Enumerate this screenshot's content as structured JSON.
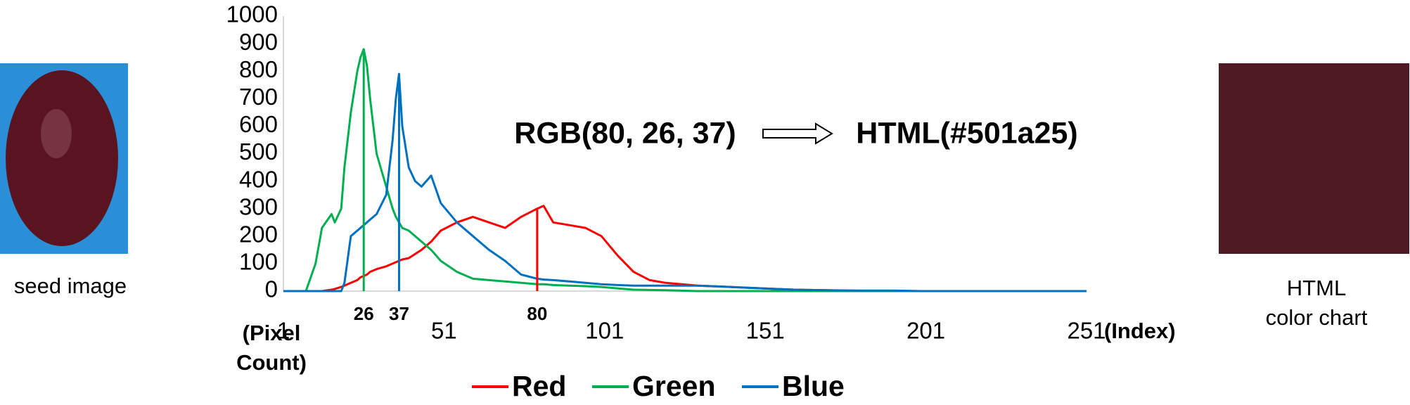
{
  "seed_image": {
    "caption": "seed image"
  },
  "color_chart": {
    "caption_lines": [
      "HTML",
      "color chart"
    ],
    "color": "#501a25"
  },
  "chart_data": {
    "type": "line",
    "y_label": "(Pixel Count)",
    "x_label": "(Index)",
    "annotations": [
      "RGB(80, 26, 37)",
      "HTML(#501a25)"
    ],
    "x": [
      1,
      8,
      11,
      13,
      16,
      17,
      19,
      20,
      22,
      24,
      25,
      26,
      27,
      28,
      30,
      33,
      35,
      36,
      37,
      38,
      40,
      42,
      44,
      47,
      50,
      55,
      60,
      65,
      70,
      75,
      80,
      82,
      85,
      90,
      95,
      100,
      105,
      110,
      115,
      120,
      130,
      140,
      150,
      160,
      170,
      180,
      190,
      200,
      251
    ],
    "series": [
      {
        "name": "Red",
        "color": "#ff0000",
        "values": [
          0,
          0,
          0,
          0,
          5,
          8,
          15,
          20,
          30,
          40,
          50,
          55,
          60,
          70,
          80,
          90,
          100,
          105,
          110,
          115,
          120,
          135,
          150,
          180,
          220,
          250,
          270,
          250,
          230,
          270,
          300,
          310,
          250,
          240,
          230,
          200,
          130,
          70,
          40,
          30,
          20,
          15,
          10,
          5,
          3,
          0,
          0,
          0,
          0
        ]
      },
      {
        "name": "Green",
        "color": "#00b050",
        "values": [
          0,
          0,
          100,
          230,
          280,
          250,
          300,
          450,
          650,
          800,
          850,
          880,
          820,
          700,
          500,
          380,
          300,
          270,
          250,
          230,
          220,
          200,
          180,
          150,
          110,
          70,
          45,
          40,
          35,
          30,
          25,
          25,
          22,
          20,
          18,
          15,
          10,
          5,
          4,
          3,
          0,
          0,
          0,
          0,
          0,
          0,
          0,
          0,
          0
        ]
      },
      {
        "name": "Blue",
        "color": "#0070c0",
        "values": [
          0,
          0,
          0,
          0,
          0,
          0,
          0,
          30,
          200,
          220,
          230,
          240,
          250,
          260,
          280,
          350,
          550,
          700,
          790,
          600,
          450,
          400,
          380,
          420,
          320,
          250,
          200,
          150,
          110,
          60,
          45,
          42,
          40,
          35,
          30,
          25,
          22,
          20,
          20,
          20,
          20,
          15,
          10,
          5,
          3,
          2,
          2,
          0,
          0
        ]
      }
    ],
    "markers": [
      {
        "x": 26,
        "color": "#00b050"
      },
      {
        "x": 37,
        "color": "#0070c0"
      },
      {
        "x": 80,
        "color": "#ff0000"
      }
    ],
    "xlim": [
      1,
      251
    ],
    "xticks": [
      1,
      51,
      101,
      151,
      201,
      251
    ],
    "ylim": [
      0,
      1000
    ],
    "yticks": [
      0,
      100,
      200,
      300,
      400,
      500,
      600,
      700,
      800,
      900,
      1000
    ],
    "grid": false
  }
}
